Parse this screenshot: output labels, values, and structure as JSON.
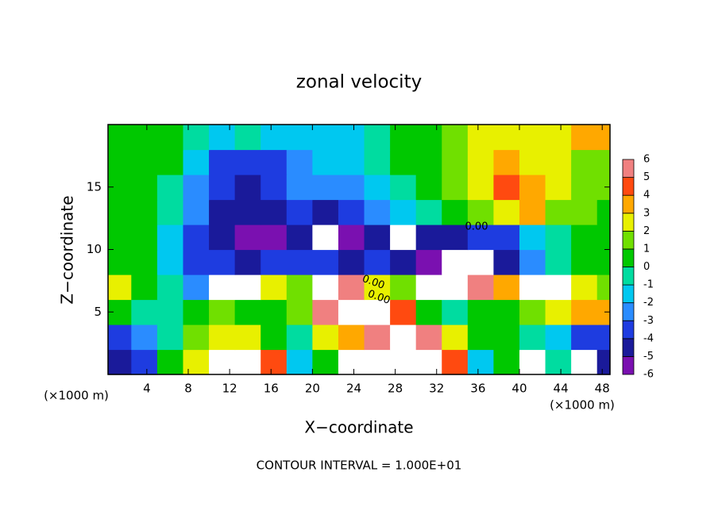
{
  "chart_data": {
    "type": "heatmap",
    "title": "zonal velocity",
    "x_label": "X−coordinate",
    "y_label": "Z−coordinate",
    "x_unit": "(×1000 m)",
    "footer": "CONTOUR INTERVAL = 1.000E+01",
    "annotations": [
      "0.00",
      "0.00",
      "0.00"
    ],
    "xlim": [
      0.25,
      48.75
    ],
    "ylim": [
      0,
      20
    ],
    "xticks": [
      4,
      8,
      12,
      16,
      20,
      24,
      28,
      32,
      36,
      40,
      44,
      48
    ],
    "yticks": [
      5,
      10,
      15
    ],
    "x": [
      1.25,
      3.75,
      6.25,
      8.75,
      11.25,
      13.75,
      16.25,
      18.75,
      21.25,
      23.75,
      26.25,
      28.75,
      31.25,
      33.75,
      36.25,
      38.75,
      41.25,
      43.75,
      46.25,
      48.75
    ],
    "y": [
      1,
      3,
      5,
      7,
      9,
      11,
      13,
      15,
      17,
      19
    ],
    "z": [
      [
        -4,
        -3,
        1,
        3,
        7,
        7,
        5,
        -1,
        1,
        7,
        7,
        7,
        7,
        5,
        -1,
        1,
        7,
        -0.5,
        7,
        -4
      ],
      [
        -3,
        -2,
        0,
        2,
        3,
        3,
        1,
        0,
        3,
        4,
        6,
        7,
        6,
        3,
        1,
        0.5,
        0,
        -1,
        -3,
        -3
      ],
      [
        0.5,
        0,
        -0.5,
        1,
        1.5,
        1,
        0.5,
        2,
        6,
        7,
        7,
        5,
        1,
        0,
        0.5,
        0.5,
        2,
        3,
        3.5,
        4
      ],
      [
        3,
        0.5,
        -0.5,
        -2,
        7,
        7,
        3,
        2,
        7,
        6,
        3,
        2,
        7,
        7,
        6,
        4,
        7,
        7,
        3,
        2
      ],
      [
        1,
        0.5,
        -1,
        -3,
        -3.5,
        -4.5,
        -3.5,
        -3,
        -3,
        -4.5,
        -3,
        -4,
        -5,
        -6.5,
        -6.5,
        -4,
        -2,
        -0.5,
        0.5,
        0.5
      ],
      [
        0.5,
        0.5,
        -1,
        -3,
        -4,
        -5,
        -5,
        -4.5,
        -6.5,
        -6,
        -4.5,
        -6.5,
        -4,
        -4,
        -3.5,
        -3,
        -1,
        -0.5,
        0.5,
        0.5
      ],
      [
        0.5,
        0.3,
        -0.5,
        -2.5,
        -4,
        -4.5,
        -4,
        -3.5,
        -4,
        -3.5,
        -2,
        -1,
        -0.5,
        0.5,
        1.5,
        3,
        4,
        2,
        1.5,
        1
      ],
      [
        0.5,
        0.5,
        0,
        -2,
        -3.5,
        -4,
        -3,
        -2,
        -2.5,
        -2,
        -1,
        0,
        0.5,
        1.5,
        3,
        4.5,
        4,
        2.5,
        2,
        1.5
      ],
      [
        0.5,
        0.5,
        1,
        -1,
        -3,
        -3.5,
        -3,
        -2,
        -1.5,
        -1.5,
        -0.5,
        0.5,
        1,
        1.5,
        2.5,
        3.5,
        3,
        2.5,
        2,
        2
      ],
      [
        0.5,
        0.5,
        1,
        0,
        -1.5,
        -0.5,
        -1.5,
        -1.5,
        -1.5,
        -1,
        0,
        0.5,
        0.5,
        1.5,
        2.5,
        3,
        2.5,
        3,
        3.5,
        3.5
      ]
    ],
    "colorbar": {
      "levels": [
        -6,
        -5,
        -4,
        -3,
        -2,
        -1,
        0,
        1,
        2,
        3,
        4,
        5,
        6
      ],
      "colors": [
        "#7a10b0",
        "#1a1a9a",
        "#1e3ce0",
        "#2a8cff",
        "#00c8f0",
        "#00dca0",
        "#00c800",
        "#70e000",
        "#e8f000",
        "#ffa800",
        "#ff4a10",
        "#f08080"
      ],
      "out_of_range_color": "#ffffff"
    }
  }
}
